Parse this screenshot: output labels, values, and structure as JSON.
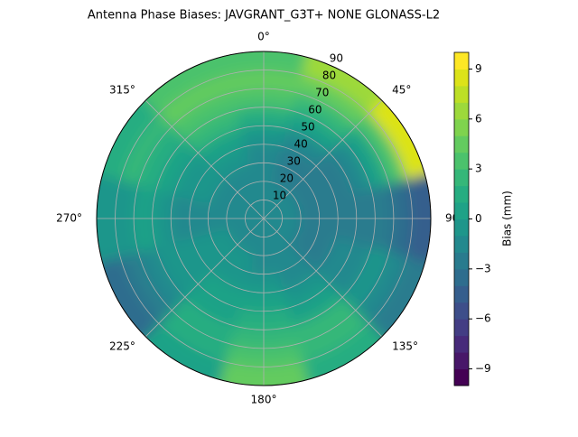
{
  "chart_data": {
    "type": "polar_contour",
    "title": "Antenna Phase Biases: JAVGRANT_G3T+   NONE GLONASS-L2",
    "thetaticks": [
      {
        "value": 0,
        "label": "0°"
      },
      {
        "value": 45,
        "label": "45°"
      },
      {
        "value": 90,
        "label": "90°"
      },
      {
        "value": 135,
        "label": "135°"
      },
      {
        "value": 180,
        "label": "180°"
      },
      {
        "value": 225,
        "label": "225°"
      },
      {
        "value": 270,
        "label": "270°"
      },
      {
        "value": 315,
        "label": "315°"
      }
    ],
    "rlim": [
      0,
      90
    ],
    "rticks": [
      10,
      20,
      30,
      40,
      50,
      60,
      70,
      80,
      90
    ],
    "zenith": [
      5,
      15,
      25,
      35,
      45,
      55,
      65,
      75,
      85
    ],
    "azimuth": [
      0,
      30,
      60,
      90,
      120,
      150,
      180,
      210,
      240,
      270,
      300,
      330
    ],
    "values": [
      [
        -1.5,
        -1.5,
        -1.5,
        -1.5,
        -1.5,
        -1.5,
        -1.5,
        -1.5,
        -1.5,
        -1.5,
        -1.5,
        -1.5
      ],
      [
        -2,
        -2,
        -2,
        -2,
        -2,
        -1.5,
        -1.5,
        -1.5,
        -1.5,
        -1.5,
        -1.5,
        -2
      ],
      [
        -2,
        -2.5,
        -2.5,
        -3,
        -2.5,
        -2,
        -1.5,
        -1,
        -1,
        -1.5,
        -1.5,
        -1.5
      ],
      [
        -2,
        -2.5,
        -3,
        -3,
        -2.5,
        -2,
        -1,
        -0.5,
        -1,
        -1.5,
        -1,
        -1
      ],
      [
        -1,
        -2,
        -2.5,
        -3,
        -2,
        -1,
        0,
        0,
        -1,
        -1.5,
        -0.5,
        0
      ],
      [
        1,
        0,
        -1.5,
        -3,
        -2,
        0,
        1,
        0.5,
        -1,
        -1,
        0.5,
        2
      ],
      [
        3,
        2,
        0,
        -3,
        -1,
        2,
        2,
        1,
        -2,
        0,
        1.5,
        3
      ],
      [
        4,
        4,
        3,
        -4,
        -2,
        2,
        3,
        1,
        -3,
        -1,
        2,
        4
      ],
      [
        3,
        6,
        8,
        -5,
        -3,
        1,
        4,
        0,
        -4,
        -1,
        1,
        3
      ]
    ],
    "clim": [
      -10,
      10
    ],
    "cticks": [
      {
        "value": -9,
        "label": "−9"
      },
      {
        "value": -6,
        "label": "−6"
      },
      {
        "value": -3,
        "label": "−3"
      },
      0,
      3,
      6,
      9
    ],
    "colorbar_label": "Bias (mm)",
    "colors": [
      "#440154",
      "#481769",
      "#472a7a",
      "#433d84",
      "#3d4e8a",
      "#355e8d",
      "#2e6d8e",
      "#297b8e",
      "#23898e",
      "#1f968b",
      "#1fa287",
      "#26ad81",
      "#35b779",
      "#4bc26c",
      "#63cb5f",
      "#7fd34e",
      "#9dd93b",
      "#bddf26",
      "#dce319",
      "#fde725"
    ],
    "grid": true
  }
}
